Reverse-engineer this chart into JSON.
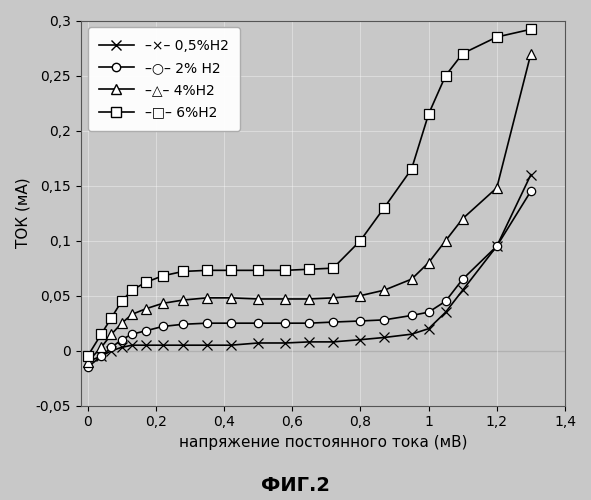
{
  "title": "ФИГ.2",
  "xlabel": "напряжение постоянного тока (мВ)",
  "ylabel": "ТОК (мА)",
  "xlim": [
    -0.02,
    1.4
  ],
  "ylim": [
    -0.05,
    0.3
  ],
  "background_color": "#c8c8c8",
  "series": {
    "h05": {
      "x": [
        0.0,
        0.04,
        0.07,
        0.1,
        0.13,
        0.17,
        0.22,
        0.28,
        0.35,
        0.42,
        0.5,
        0.58,
        0.65,
        0.72,
        0.8,
        0.87,
        0.95,
        1.0,
        1.05,
        1.1,
        1.2,
        1.3
      ],
      "y": [
        -0.01,
        -0.005,
        0.0,
        0.003,
        0.005,
        0.005,
        0.005,
        0.005,
        0.005,
        0.005,
        0.007,
        0.007,
        0.008,
        0.008,
        0.01,
        0.012,
        0.015,
        0.02,
        0.035,
        0.055,
        0.095,
        0.16
      ],
      "marker": "x",
      "color": "#000000",
      "label": "–×– 0,5%H2",
      "markersize": 7,
      "markerfacecolor": "black"
    },
    "h2": {
      "x": [
        0.0,
        0.04,
        0.07,
        0.1,
        0.13,
        0.17,
        0.22,
        0.28,
        0.35,
        0.42,
        0.5,
        0.58,
        0.65,
        0.72,
        0.8,
        0.87,
        0.95,
        1.0,
        1.05,
        1.1,
        1.2,
        1.3
      ],
      "y": [
        -0.015,
        -0.005,
        0.003,
        0.01,
        0.015,
        0.018,
        0.022,
        0.024,
        0.025,
        0.025,
        0.025,
        0.025,
        0.025,
        0.026,
        0.027,
        0.028,
        0.032,
        0.035,
        0.045,
        0.065,
        0.095,
        0.145
      ],
      "marker": "o",
      "color": "#000000",
      "label": "–○– 2% H2",
      "markersize": 6,
      "markerfacecolor": "white"
    },
    "h4": {
      "x": [
        0.0,
        0.04,
        0.07,
        0.1,
        0.13,
        0.17,
        0.22,
        0.28,
        0.35,
        0.42,
        0.5,
        0.58,
        0.65,
        0.72,
        0.8,
        0.87,
        0.95,
        1.0,
        1.05,
        1.1,
        1.2,
        1.3
      ],
      "y": [
        -0.01,
        0.003,
        0.015,
        0.025,
        0.033,
        0.038,
        0.043,
        0.046,
        0.048,
        0.048,
        0.047,
        0.047,
        0.047,
        0.048,
        0.05,
        0.055,
        0.065,
        0.08,
        0.1,
        0.12,
        0.148,
        0.27
      ],
      "marker": "^",
      "color": "#000000",
      "label": "–△– 4%H2",
      "markersize": 7,
      "markerfacecolor": "white"
    },
    "h6": {
      "x": [
        0.0,
        0.04,
        0.07,
        0.1,
        0.13,
        0.17,
        0.22,
        0.28,
        0.35,
        0.42,
        0.5,
        0.58,
        0.65,
        0.72,
        0.8,
        0.87,
        0.95,
        1.0,
        1.05,
        1.1,
        1.2,
        1.3
      ],
      "y": [
        -0.005,
        0.015,
        0.03,
        0.045,
        0.055,
        0.062,
        0.068,
        0.072,
        0.073,
        0.073,
        0.073,
        0.073,
        0.074,
        0.075,
        0.1,
        0.13,
        0.165,
        0.215,
        0.25,
        0.27,
        0.285,
        0.292
      ],
      "marker": "s",
      "color": "#000000",
      "label": "–□– 6%H2",
      "markersize": 7,
      "markerfacecolor": "white"
    }
  },
  "yticks": [
    -0.05,
    0.0,
    0.05,
    0.1,
    0.15,
    0.2,
    0.25,
    0.3
  ],
  "xticks": [
    0.0,
    0.2,
    0.4,
    0.6,
    0.8,
    1.0,
    1.2,
    1.4
  ],
  "font_size": 11,
  "title_font_size": 14,
  "legend_labels": [
    "–×– 0,5%H2",
    "–○– 2% H2",
    "–△– 4%H2",
    "–□– 6%H2"
  ]
}
